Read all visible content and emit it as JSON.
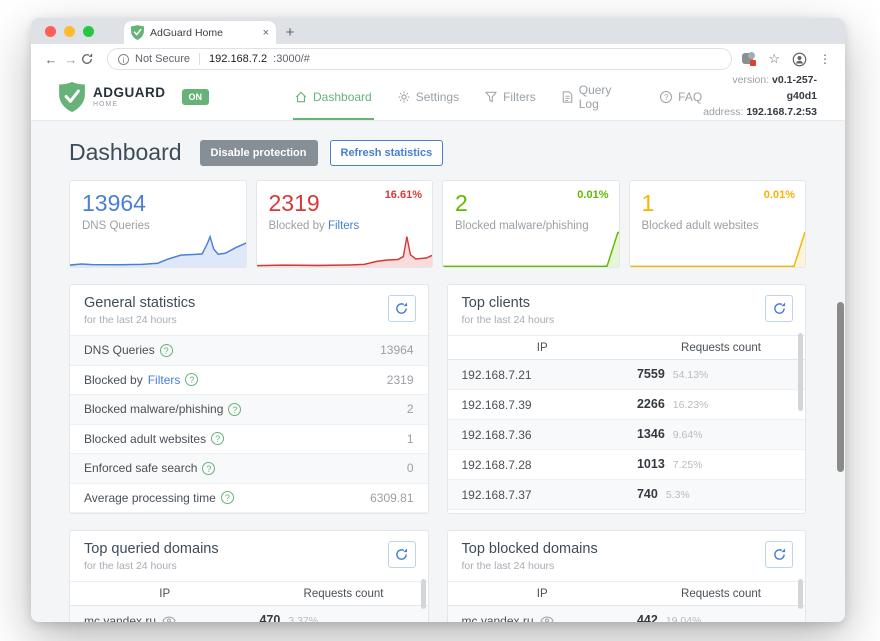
{
  "browser": {
    "tab_title": "AdGuard Home",
    "close_tab": "×",
    "new_tab": "+",
    "back": "←",
    "forward": "→",
    "info": "i",
    "not_secure": "Not Secure",
    "url_host": "192.168.7.2",
    "url_rest": ":3000/#",
    "star": "☆",
    "menu_dots": "⋮"
  },
  "header": {
    "logo_name": "ADGUARD",
    "logo_sub": "HOME",
    "on_badge": "ON",
    "nav": [
      {
        "label": "Dashboard"
      },
      {
        "label": "Settings"
      },
      {
        "label": "Filters"
      },
      {
        "label": "Query Log"
      },
      {
        "label": "FAQ"
      }
    ],
    "version_label": "version: ",
    "version_value": "v0.1-257-g40d1",
    "address_label": "address: ",
    "address_value": "192.168.7.2:53",
    "brand_green": "#67b279"
  },
  "page": {
    "title": "Dashboard",
    "disable_protection": "Disable protection",
    "refresh_statistics": "Refresh statistics"
  },
  "cards": [
    {
      "value": "13964",
      "label": "DNS Queries",
      "percent": "",
      "color": "#4a7fd6"
    },
    {
      "value": "2319",
      "label_prefix": "Blocked by ",
      "label_link": "Filters",
      "percent": "16.61%",
      "color": "#d63939"
    },
    {
      "value": "2",
      "label": "Blocked malware/phishing",
      "percent": "0.01%",
      "color": "#5eba00"
    },
    {
      "value": "1",
      "label": "Blocked adult websites",
      "percent": "0.01%",
      "color": "#f5b400"
    }
  ],
  "general_stats": {
    "title": "General statistics",
    "subtitle": "for the last 24 hours",
    "rows": [
      {
        "label": "DNS Queries",
        "value": "13964"
      },
      {
        "label_prefix": "Blocked by ",
        "label_link": "Filters",
        "value": "2319"
      },
      {
        "label": "Blocked malware/phishing",
        "value": "2"
      },
      {
        "label": "Blocked adult websites",
        "value": "1"
      },
      {
        "label": "Enforced safe search",
        "value": "0"
      },
      {
        "label": "Average processing time",
        "value": "6309.81"
      }
    ]
  },
  "top_clients": {
    "title": "Top clients",
    "subtitle": "for the last 24 hours",
    "col_ip": "IP",
    "col_count": "Requests count",
    "rows": [
      {
        "ip": "192.168.7.21",
        "count": "7559",
        "percent": "54.13%",
        "bar_width": "54.13%",
        "bar_color": "#5eba00"
      },
      {
        "ip": "192.168.7.39",
        "count": "2266",
        "percent": "16.23%",
        "bar_width": "16.23%",
        "bar_color": "#f5b400"
      },
      {
        "ip": "192.168.7.36",
        "count": "1346",
        "percent": "9.64%",
        "bar_width": "9.64%",
        "bar_color": "#d6342b"
      },
      {
        "ip": "192.168.7.28",
        "count": "1013",
        "percent": "7.25%",
        "bar_width": "7.25%",
        "bar_color": "#d6342b"
      },
      {
        "ip": "192.168.7.37",
        "count": "740",
        "percent": "5.3%",
        "bar_width": "5.3%",
        "bar_color": "#d6342b"
      }
    ]
  },
  "top_queried": {
    "title": "Top queried domains",
    "subtitle": "for the last 24 hours",
    "col_ip": "IP",
    "col_count": "Requests count",
    "rows": [
      {
        "domain": "mc.yandex.ru",
        "count": "470",
        "percent": "3.37%",
        "bar_width": "3.37%",
        "bar_color": "#5eba00"
      }
    ]
  },
  "top_blocked": {
    "title": "Top blocked domains",
    "subtitle": "for the last 24 hours",
    "col_ip": "IP",
    "col_count": "Requests count",
    "rows": [
      {
        "domain": "mc.yandex.ru",
        "count": "442",
        "percent": "19.04%",
        "bar_width": "19.04%",
        "bar_color": "#d6342b"
      }
    ]
  }
}
